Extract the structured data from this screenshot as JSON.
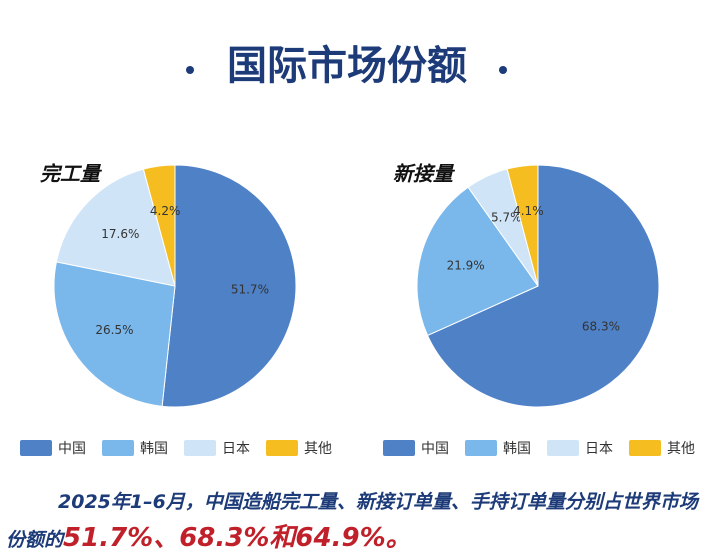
{
  "title": "国际市场份额",
  "chart_data": [
    {
      "type": "pie",
      "title": "完工量",
      "categories": [
        "中国",
        "韩国",
        "日本",
        "其他"
      ],
      "values": [
        51.7,
        26.5,
        17.6,
        4.2
      ],
      "value_labels": [
        "51.7%",
        "26.5%",
        "17.6%",
        "4.2%"
      ],
      "colors": [
        "#4f81c7",
        "#7ab8ec",
        "#d0e4f7",
        "#f5bd1f"
      ]
    },
    {
      "type": "pie",
      "title": "新接量",
      "categories": [
        "中国",
        "韩国",
        "日本",
        "其他"
      ],
      "values": [
        68.3,
        21.9,
        5.7,
        4.1
      ],
      "value_labels": [
        "68.3%",
        "21.9%",
        "5.7%",
        "4.1%"
      ],
      "colors": [
        "#4f81c7",
        "#7ab8ec",
        "#d0e4f7",
        "#f5bd1f"
      ]
    }
  ],
  "footnote": {
    "text": "2025年1–6月，中国造船完工量、新接订单量、手持订单量分别占世界市场份额的",
    "highlight": "51.7%、68.3%和64.9%。"
  }
}
